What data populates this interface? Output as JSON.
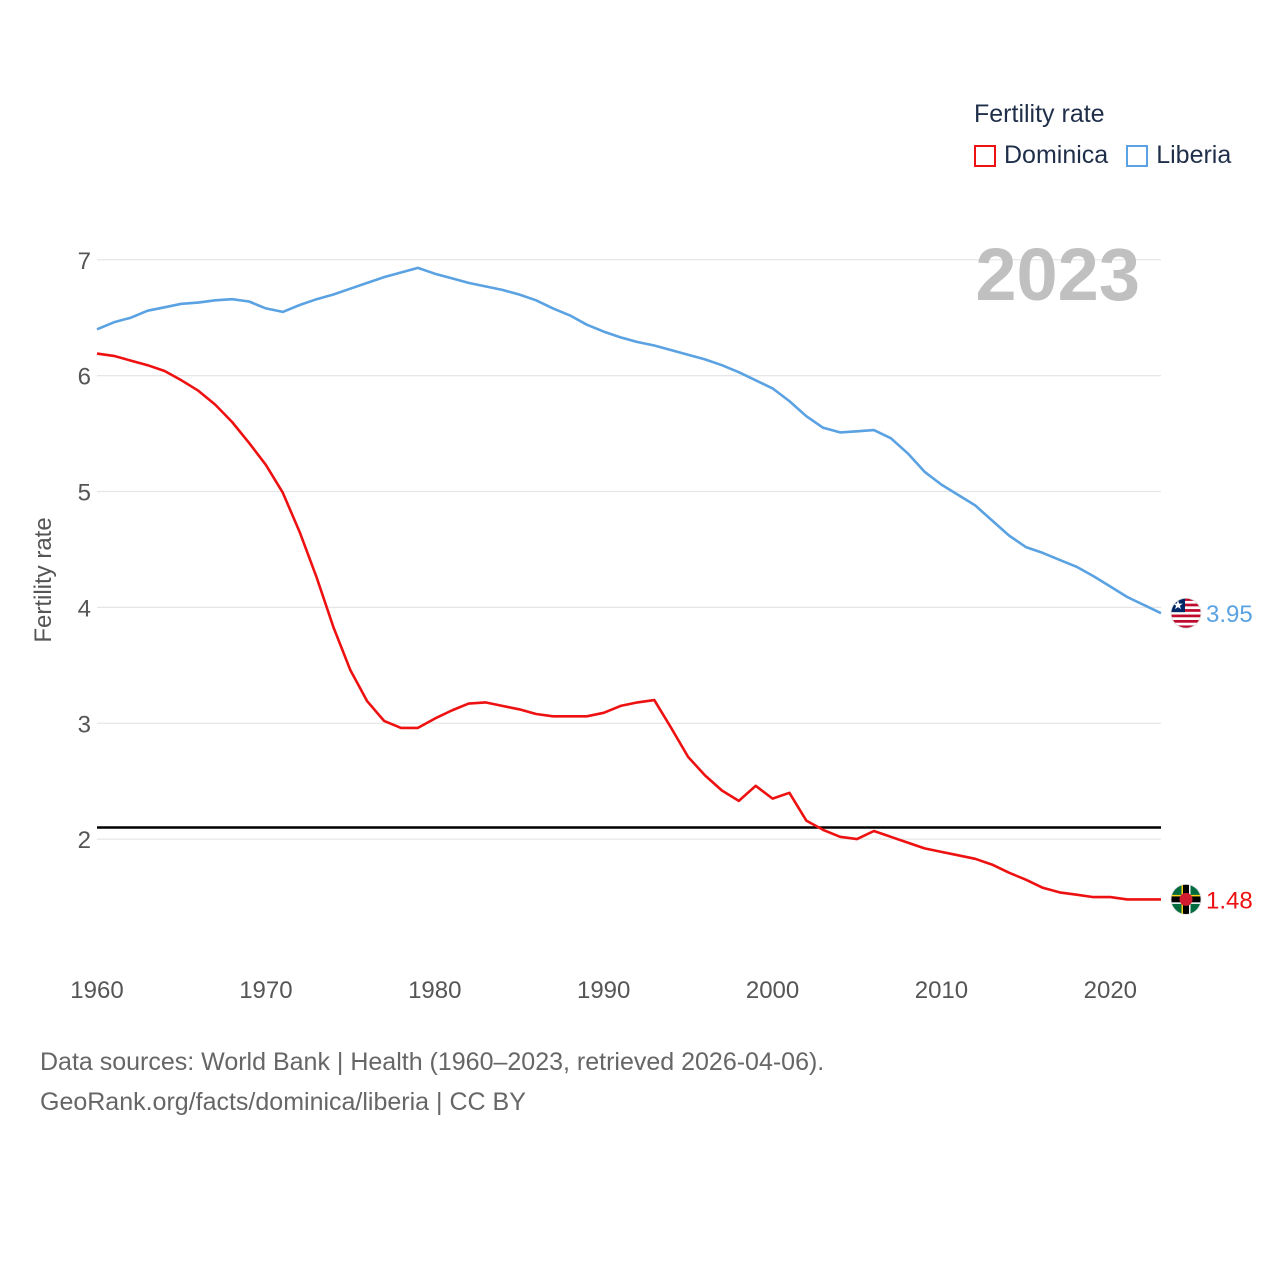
{
  "legend": {
    "title": "Fertility rate",
    "items": [
      {
        "label": "Dominica",
        "color": "#ee1111"
      },
      {
        "label": "Liberia",
        "color": "#5aa2e2"
      }
    ]
  },
  "footer": {
    "line1": "Data sources: World Bank | Health (1960–2023, retrieved 2026-04-06).",
    "line2": "GeoRank.org/facts/dominica/liberia | CC BY"
  },
  "chart_data": {
    "type": "line",
    "title": "Fertility rate",
    "year_label": "2023",
    "ylabel": "Fertility rate",
    "xlabel": "",
    "xlim": [
      1960,
      2023
    ],
    "ylim": [
      1.0,
      7.3
    ],
    "x_ticks": [
      1960,
      1970,
      1980,
      1990,
      2000,
      2010,
      2020
    ],
    "y_ticks": [
      2,
      3,
      4,
      5,
      6,
      7
    ],
    "reference_line": 2.1,
    "x": [
      1960,
      1961,
      1962,
      1963,
      1964,
      1965,
      1966,
      1967,
      1968,
      1969,
      1970,
      1971,
      1972,
      1973,
      1974,
      1975,
      1976,
      1977,
      1978,
      1979,
      1980,
      1981,
      1982,
      1983,
      1984,
      1985,
      1986,
      1987,
      1988,
      1989,
      1990,
      1991,
      1992,
      1993,
      1994,
      1995,
      1996,
      1997,
      1998,
      1999,
      2000,
      2001,
      2002,
      2003,
      2004,
      2005,
      2006,
      2007,
      2008,
      2009,
      2010,
      2011,
      2012,
      2013,
      2014,
      2015,
      2016,
      2017,
      2018,
      2019,
      2020,
      2021,
      2022,
      2023
    ],
    "series": [
      {
        "name": "Dominica",
        "color": "#ee1111",
        "end_label": "1.48",
        "values": [
          6.19,
          6.17,
          6.13,
          6.09,
          6.04,
          5.96,
          5.87,
          5.75,
          5.6,
          5.42,
          5.23,
          4.99,
          4.65,
          4.26,
          3.83,
          3.46,
          3.19,
          3.02,
          2.96,
          2.96,
          3.04,
          3.11,
          3.17,
          3.18,
          3.15,
          3.12,
          3.08,
          3.06,
          3.06,
          3.06,
          3.09,
          3.15,
          3.18,
          3.2,
          2.96,
          2.71,
          2.55,
          2.42,
          2.33,
          2.46,
          2.35,
          2.4,
          2.16,
          2.08,
          2.02,
          2.0,
          2.07,
          2.02,
          1.97,
          1.92,
          1.89,
          1.86,
          1.83,
          1.78,
          1.71,
          1.65,
          1.58,
          1.54,
          1.52,
          1.5,
          1.5,
          1.48,
          1.48,
          1.48
        ]
      },
      {
        "name": "Liberia",
        "color": "#5aa2e2",
        "end_label": "3.95",
        "values": [
          6.4,
          6.46,
          6.5,
          6.56,
          6.59,
          6.62,
          6.63,
          6.65,
          6.66,
          6.64,
          6.58,
          6.55,
          6.61,
          6.66,
          6.7,
          6.75,
          6.8,
          6.85,
          6.89,
          6.93,
          6.88,
          6.84,
          6.8,
          6.77,
          6.74,
          6.7,
          6.65,
          6.58,
          6.52,
          6.44,
          6.38,
          6.33,
          6.29,
          6.26,
          6.22,
          6.18,
          6.14,
          6.09,
          6.03,
          5.96,
          5.89,
          5.78,
          5.65,
          5.55,
          5.51,
          5.52,
          5.53,
          5.46,
          5.33,
          5.17,
          5.06,
          4.97,
          4.88,
          4.75,
          4.62,
          4.52,
          4.47,
          4.41,
          4.35,
          4.27,
          4.18,
          4.09,
          4.02,
          3.95
        ]
      }
    ]
  }
}
